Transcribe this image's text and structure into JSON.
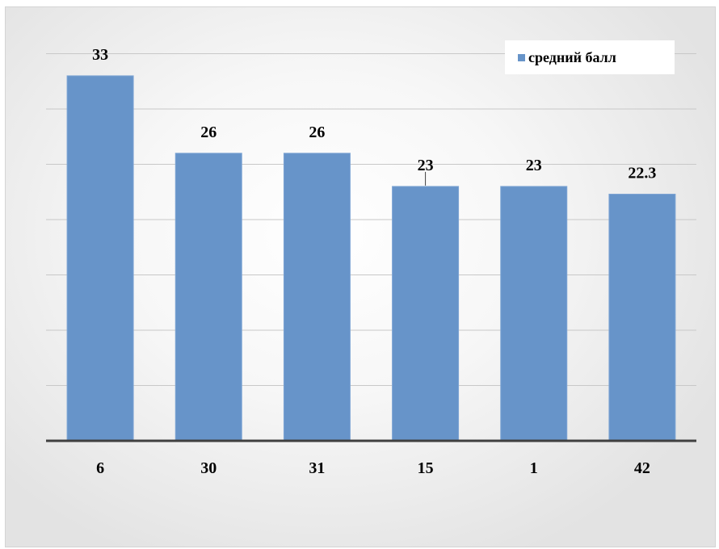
{
  "chart_data": {
    "type": "bar",
    "title": "",
    "xlabel": "",
    "ylabel": "",
    "categories": [
      "6",
      "30",
      "31",
      "15",
      "1",
      "42"
    ],
    "series": [
      {
        "name": "средний балл",
        "values": [
          33,
          26,
          26,
          23,
          23,
          22.3
        ],
        "labels": [
          "33",
          "26",
          "26",
          "23",
          "23",
          "22.3"
        ]
      }
    ],
    "ylim": [
      0,
      40
    ],
    "gridlines": true,
    "legend_position": "top-right",
    "colors": {
      "bar": "#6794c9",
      "grid": "#c8c8c8",
      "axis": "#404040"
    }
  }
}
